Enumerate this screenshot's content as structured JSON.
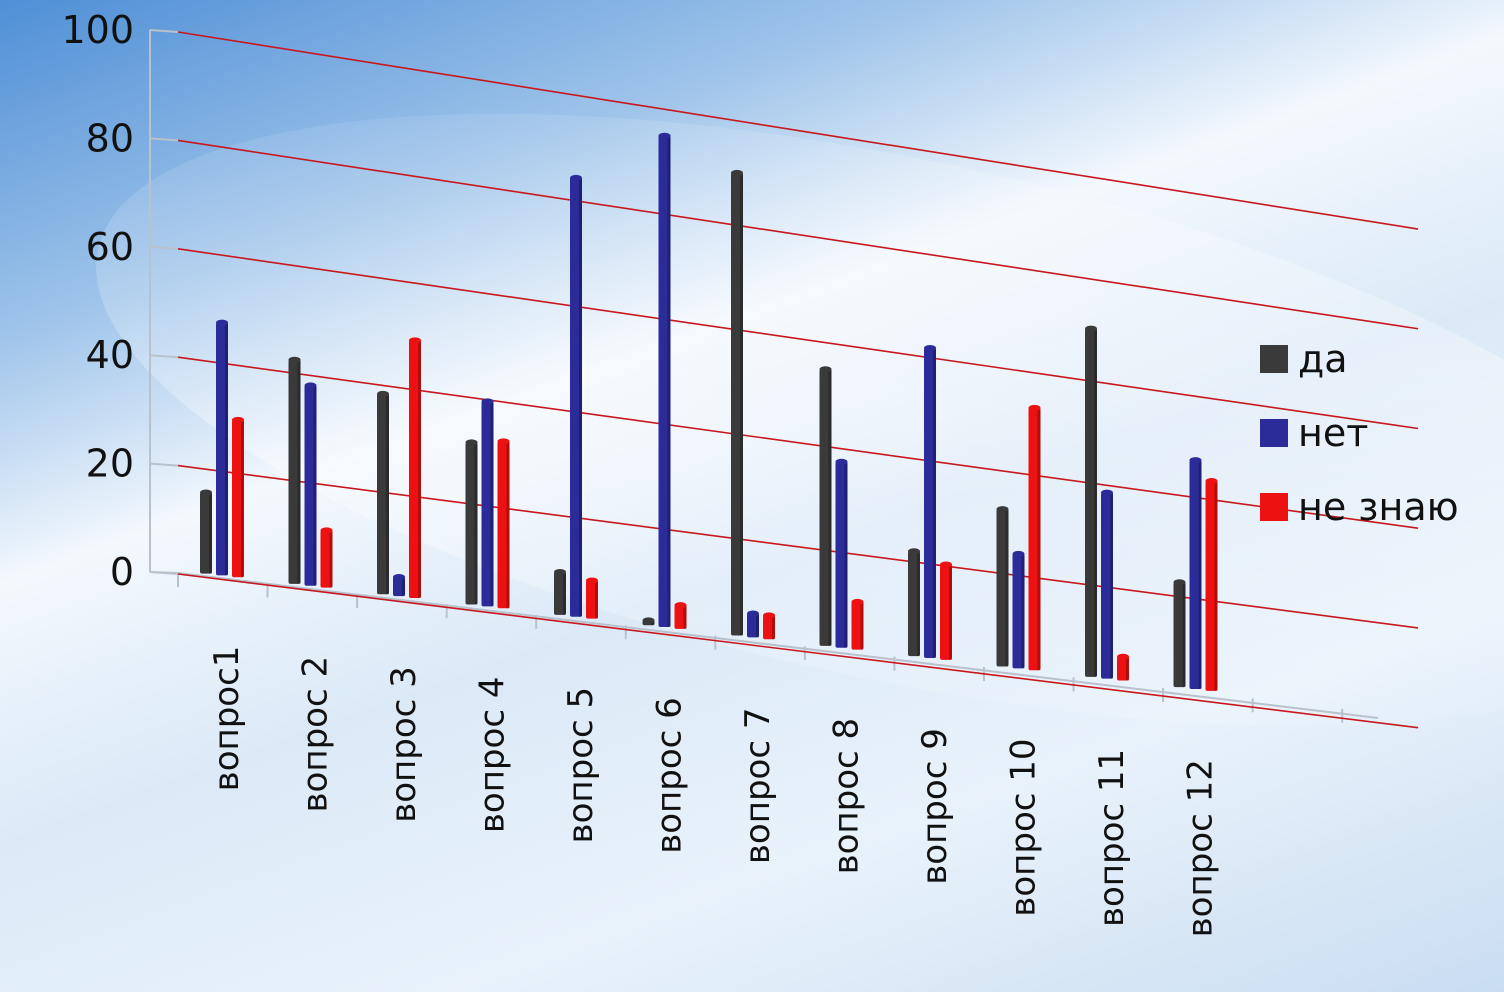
{
  "chart_data": {
    "type": "bar",
    "categories": [
      "вопрос1",
      "вопрос 2",
      "вопрос 3",
      "вопрос 4",
      "вопрос 5",
      "вопрос 6",
      "вопрос 7",
      "вопрос 8",
      "вопрос 9",
      "вопрос 10",
      "вопрос 11",
      "вопрос 12"
    ],
    "series": [
      {
        "name": "да",
        "color": "#3a3a3a",
        "values": [
          17,
          47,
          42,
          34,
          9,
          1,
          97,
          58,
          22,
          33,
          73,
          22
        ]
      },
      {
        "name": "нет",
        "color": "#2b2b9a",
        "values": [
          53,
          42,
          4,
          43,
          92,
          103,
          5,
          39,
          65,
          24,
          39,
          48
        ]
      },
      {
        "name": "не знаю",
        "color": "#ee1111",
        "values": [
          33,
          12,
          54,
          35,
          8,
          5,
          5,
          10,
          20,
          55,
          5,
          44
        ]
      }
    ],
    "yticks": [
      "0",
      "20",
      "40",
      "60",
      "80",
      "100"
    ],
    "ylim": [
      0,
      100
    ],
    "grid": true,
    "legend": "right"
  }
}
